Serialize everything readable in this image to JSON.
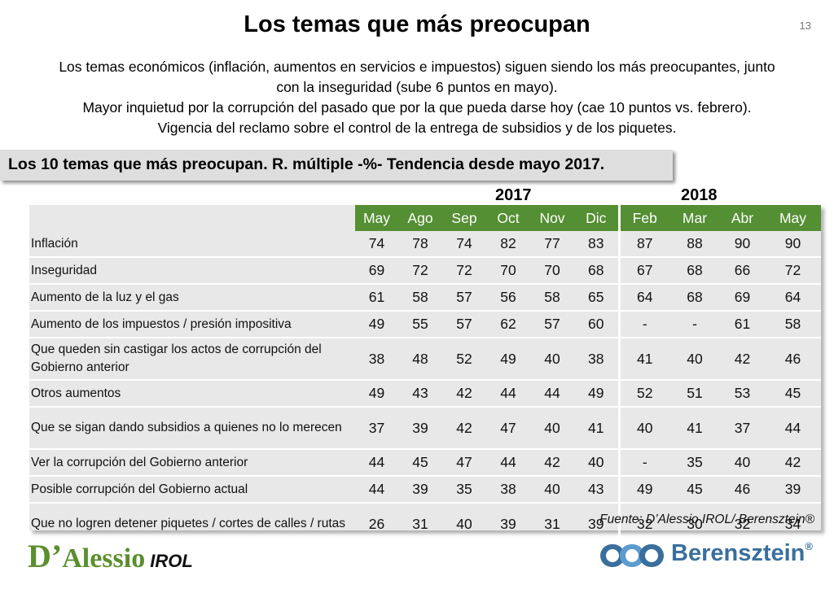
{
  "title": "Los temas que más preocupan",
  "page_number": "13",
  "subtitle_lines": [
    "Los temas económicos (inflación, aumentos en servicios e impuestos) siguen siendo los más preocupantes, junto",
    "con la inseguridad (sube 6 puntos en mayo).",
    "Mayor inquietud por la corrupción del pasado que por la que pueda darse hoy (cae 10 puntos vs. febrero).",
    "Vigencia del reclamo sobre el control de la entrega de subsidios y de los piquetes."
  ],
  "banner": "Los 10 temas que más preocupan. R. múltiple -%- Tendencia desde mayo 2017.",
  "years": [
    "2017",
    "2018"
  ],
  "source": "Fuente: D’Alessio IROL/ Berensztein®",
  "logos": {
    "left_d": "D’",
    "left_name": "Alessio",
    "left_suffix": "IROL",
    "right_name": "Berensztein",
    "right_reg": "®"
  },
  "colors": {
    "header_green": "#548f33",
    "table_bg": "#e8e8e8",
    "logo_green": "#5b8f2e",
    "logo_blue": "#3a6f9c"
  },
  "chart_data": {
    "type": "table",
    "columns": [
      "May",
      "Ago",
      "Sep",
      "Oct",
      "Nov",
      "Dic",
      "Feb",
      "Mar",
      "Abr",
      "May"
    ],
    "rows": [
      {
        "label": "Inflación",
        "values": [
          "74",
          "78",
          "74",
          "82",
          "77",
          "83",
          "87",
          "88",
          "90",
          "90"
        ]
      },
      {
        "label": "Inseguridad",
        "values": [
          "69",
          "72",
          "72",
          "70",
          "70",
          "68",
          "67",
          "68",
          "66",
          "72"
        ]
      },
      {
        "label": "Aumento de la luz y el gas",
        "values": [
          "61",
          "58",
          "57",
          "56",
          "58",
          "65",
          "64",
          "68",
          "69",
          "64"
        ]
      },
      {
        "label": "Aumento de los impuestos / presión impositiva",
        "values": [
          "49",
          "55",
          "57",
          "62",
          "57",
          "60",
          "-",
          "-",
          "61",
          "58"
        ]
      },
      {
        "label": "Que queden sin castigar los actos de corrupción del Gobierno anterior",
        "values": [
          "38",
          "48",
          "52",
          "49",
          "40",
          "38",
          "41",
          "40",
          "42",
          "46"
        ]
      },
      {
        "label": "Otros aumentos",
        "values": [
          "49",
          "43",
          "42",
          "44",
          "44",
          "49",
          "52",
          "51",
          "53",
          "45"
        ]
      },
      {
        "label": "Que se sigan dando subsidios a quienes no lo merecen",
        "values": [
          "37",
          "39",
          "42",
          "47",
          "40",
          "41",
          "40",
          "41",
          "37",
          "44"
        ]
      },
      {
        "label": "Ver la corrupción del Gobierno anterior",
        "values": [
          "44",
          "45",
          "47",
          "44",
          "42",
          "40",
          "-",
          "35",
          "40",
          "42"
        ]
      },
      {
        "label": "Posible corrupción del Gobierno actual",
        "values": [
          "44",
          "39",
          "35",
          "38",
          "40",
          "43",
          "49",
          "45",
          "46",
          "39"
        ]
      },
      {
        "label": "Que no logren detener piquetes / cortes de calles / rutas",
        "values": [
          "26",
          "31",
          "40",
          "39",
          "31",
          "39",
          "32",
          "30",
          "32",
          "34"
        ]
      }
    ]
  }
}
